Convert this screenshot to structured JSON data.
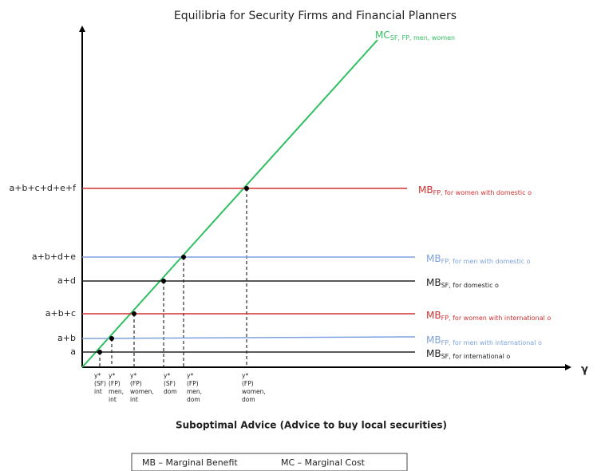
{
  "title": "Equilibria for Security Firms and Financial Planners",
  "x_axis_label": "γ",
  "x_axis_title": "Suboptimal  Advice (Advice to buy local securities)",
  "mc_curve": {
    "main": "MC",
    "sub": "SF, FP, men, women",
    "color": "#2fbf5f"
  },
  "levels": [
    {
      "label": "a+b+c+d+e+f",
      "main": "MB",
      "sub": "FP, for women with domestic o",
      "color": "#d03030"
    },
    {
      "label": "a+b+d+e",
      "main": "MB",
      "sub": "FP, for men with domestic o",
      "color": "#7ea3dc"
    },
    {
      "label": "a+d",
      "main": "MB",
      "sub": "SF, for domestic o",
      "color": "#222222"
    },
    {
      "label": "a+b+c",
      "main": "MB",
      "sub": "FP, for women with international o",
      "color": "#d03030"
    },
    {
      "label": "a+b",
      "main": "MB",
      "sub": "FP, for men with international o",
      "color": "#7ea3dc"
    },
    {
      "label": "a",
      "main": "MB",
      "sub": "SF, for international o",
      "color": "#222222"
    }
  ],
  "equilibria": [
    {
      "lines": [
        "y*",
        "(SF)",
        "int"
      ]
    },
    {
      "lines": [
        "y*",
        "(FP)",
        "men,",
        "int"
      ]
    },
    {
      "lines": [
        "y*",
        "(FP)",
        "women,",
        "int"
      ]
    },
    {
      "lines": [
        "y*",
        "(SF)",
        "dom"
      ]
    },
    {
      "lines": [
        "y*",
        "(FP)",
        "men,",
        "dom"
      ]
    },
    {
      "lines": [
        "y*",
        "(FP)",
        "women,",
        "dom"
      ]
    }
  ],
  "legend": [
    "MB – Marginal Benefit",
    "MC – Marginal Cost"
  ]
}
